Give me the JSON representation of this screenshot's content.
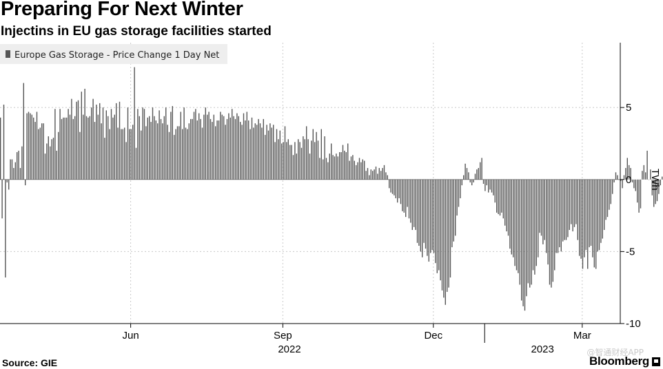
{
  "title": "Preparing For Next Winter",
  "subtitle": "Injectins in EU gas storage facilities started",
  "source": "Source: GIE",
  "brand": "Bloomberg",
  "watermark": "@智通财经APP",
  "colors": {
    "bar": "#555555",
    "grid": "#c8c8c8",
    "zero": "#888888",
    "legend_bg": "#eeeeee"
  },
  "chart_data": {
    "type": "bar",
    "legend": "Europe Gas Storage - Price Change 1 Day Net",
    "legend_placement": "top-left",
    "ylabel": "TWh",
    "ylim": [
      -10,
      9.5
    ],
    "yticks": [
      5,
      0,
      -5,
      -10
    ],
    "ytick_labels": [
      "5",
      "0",
      "-5",
      "-10"
    ],
    "grid": true,
    "xlim": [
      "2022-03-14",
      "2023-03-24"
    ],
    "month_ticks": [
      {
        "date": "2022-06-01",
        "label": "Jun"
      },
      {
        "date": "2022-09-01",
        "label": "Sep"
      },
      {
        "date": "2022-12-01",
        "label": "Dec"
      },
      {
        "date": "2023-03-01",
        "label": "Mar"
      }
    ],
    "year_labels": [
      {
        "label": "2022",
        "center": "2022-09-05"
      },
      {
        "label": "2023",
        "center": "2023-02-05"
      }
    ],
    "year_separators": [
      "2023-01-01"
    ],
    "x_start": "2022-03-14",
    "values": [
      4.3,
      -2.7,
      5.2,
      -6.8,
      -0.2,
      -0.7,
      1.4,
      1.4,
      0.8,
      1.2,
      1.9,
      2.0,
      0.8,
      2.3,
      6.7,
      -0.4,
      4.6,
      4.7,
      4.6,
      4.5,
      4.3,
      4.0,
      4.7,
      3.5,
      3.6,
      3.9,
      3.9,
      1.8,
      2.5,
      3.0,
      2.3,
      2.8,
      2.9,
      4.9,
      2.0,
      3.3,
      4.9,
      4.2,
      4.3,
      4.3,
      4.3,
      4.9,
      4.5,
      5.6,
      4.2,
      4.4,
      5.4,
      5.5,
      3.3,
      6.1,
      4.5,
      6.3,
      4.4,
      4.3,
      4.4,
      5.0,
      5.6,
      4.0,
      5.2,
      4.5,
      5.3,
      3.9,
      5.0,
      2.9,
      4.8,
      4.4,
      3.5,
      4.9,
      4.3,
      4.5,
      5.3,
      3.6,
      5.4,
      3.5,
      3.5,
      3.6,
      2.6,
      5.0,
      3.5,
      3.5,
      3.8,
      7.8,
      2.2,
      4.9,
      4.4,
      3.4,
      5.0,
      4.9,
      3.7,
      4.3,
      4.4,
      4.0,
      5.0,
      4.4,
      4.1,
      3.9,
      4.8,
      4.2,
      3.9,
      4.4,
      5.0,
      3.8,
      3.3,
      4.7,
      5.1,
      3.1,
      3.5,
      3.7,
      3.7,
      4.7,
      3.5,
      5.0,
      3.6,
      3.5,
      3.9,
      4.2,
      4.2,
      4.7,
      4.9,
      4.1,
      4.6,
      4.2,
      3.6,
      4.5,
      5.0,
      4.5,
      4.7,
      4.2,
      4.0,
      4.5,
      3.7,
      4.1,
      4.1,
      4.7,
      4.5,
      4.4,
      3.8,
      4.2,
      4.6,
      4.3,
      4.9,
      4.4,
      4.2,
      4.6,
      4.4,
      4.0,
      3.8,
      4.6,
      4.1,
      4.7,
      4.1,
      3.5,
      4.3,
      3.6,
      3.9,
      3.8,
      4.2,
      3.9,
      3.6,
      4.2,
      3.1,
      3.8,
      3.4,
      3.9,
      3.6,
      3.8,
      2.6,
      3.5,
      2.8,
      3.4,
      2.5,
      2.6,
      3.7,
      2.6,
      2.8,
      2.4,
      2.4,
      1.7,
      2.6,
      1.8,
      2.8,
      2.6,
      2.2,
      3.0,
      2.8,
      3.7,
      2.8,
      1.8,
      2.7,
      3.5,
      2.6,
      3.3,
      2.7,
      1.5,
      3.5,
      1.4,
      3.0,
      1.5,
      1.2,
      1.8,
      2.5,
      1.7,
      1.6,
      1.8,
      1.6,
      1.9,
      1.9,
      2.4,
      2.0,
      1.9,
      2.5,
      1.3,
      1.6,
      1.7,
      1.3,
      1.0,
      1.2,
      1.5,
      1.2,
      1.4,
      1.3,
      0.6,
      0.8,
      0.3,
      0.7,
      0.6,
      0.7,
      0.9,
      0.4,
      0.8,
      0.6,
      0.8,
      1.0,
      0.5,
      0.3,
      -0.6,
      -0.9,
      -1.0,
      -1.1,
      -1.3,
      -1.6,
      -1.3,
      -1.7,
      -2.2,
      -2.3,
      -2.6,
      -1.9,
      -2.7,
      -3.0,
      -3.5,
      -3.3,
      -3.5,
      -4.4,
      -4.6,
      -5.0,
      -5.4,
      -4.4,
      -4.8,
      -5.3,
      -5.7,
      -5.1,
      -4.9,
      -5.1,
      -5.8,
      -6.5,
      -6.3,
      -7.0,
      -7.7,
      -8.2,
      -8.7,
      -7.8,
      -7.5,
      -6.8,
      -4.7,
      -4.3,
      -3.9,
      -2.5,
      -1.9,
      -1.3,
      -0.4,
      0.3,
      1.1,
      0.8,
      0.5,
      -0.2,
      -0.4,
      -0.2,
      0.4,
      0.7,
      0.8,
      1.2,
      1.5,
      -0.3,
      -0.8,
      -0.4,
      -0.9,
      -0.7,
      -0.9,
      -1.1,
      -1.6,
      -2.3,
      -2.4,
      -2.5,
      -2.3,
      -2.7,
      -3.2,
      -3.6,
      -3.9,
      -4.8,
      -5.2,
      -5.4,
      -6.0,
      -6.3,
      -6.5,
      -7.3,
      -8.4,
      -8.8,
      -9.1,
      -8.1,
      -7.2,
      -7.5,
      -7.3,
      -6.3,
      -6.6,
      -6.0,
      -5.4,
      -3.7,
      -3.9,
      -4.5,
      -4.2,
      -5.1,
      -5.9,
      -7.3,
      -7.5,
      -7.1,
      -6.3,
      -5.1,
      -5.1,
      -4.7,
      -5.0,
      -4.3,
      -4.2,
      -4.2,
      -4.0,
      -3.5,
      -3.1,
      -3.6,
      -3.3,
      -3.1,
      -4.2,
      -5.3,
      -5.5,
      -6.2,
      -5.4,
      -4.9,
      -6.2,
      -4.7,
      -4.6,
      -5.4,
      -6.1,
      -6.2,
      -5.0,
      -4.9,
      -4.4,
      -4.1,
      -3.5,
      -2.8,
      -2.6,
      -2.1,
      -1.7,
      -1.0,
      -0.2,
      0.5,
      0.3,
      0.0,
      -0.1,
      -0.6,
      0.3,
      0.8,
      1.5,
      1.0,
      0.8,
      -0.2,
      -0.6,
      -0.8,
      -1.6,
      -2.3,
      -2.0,
      0.6,
      1.0,
      0.5,
      2.0,
      0.0,
      0.7,
      -1.1,
      -1.9,
      -1.7,
      -1.5,
      -1.0,
      -0.4,
      0.2,
      -2.4,
      1.9,
      2.2,
      2.3,
      1.5,
      0.9
    ]
  }
}
